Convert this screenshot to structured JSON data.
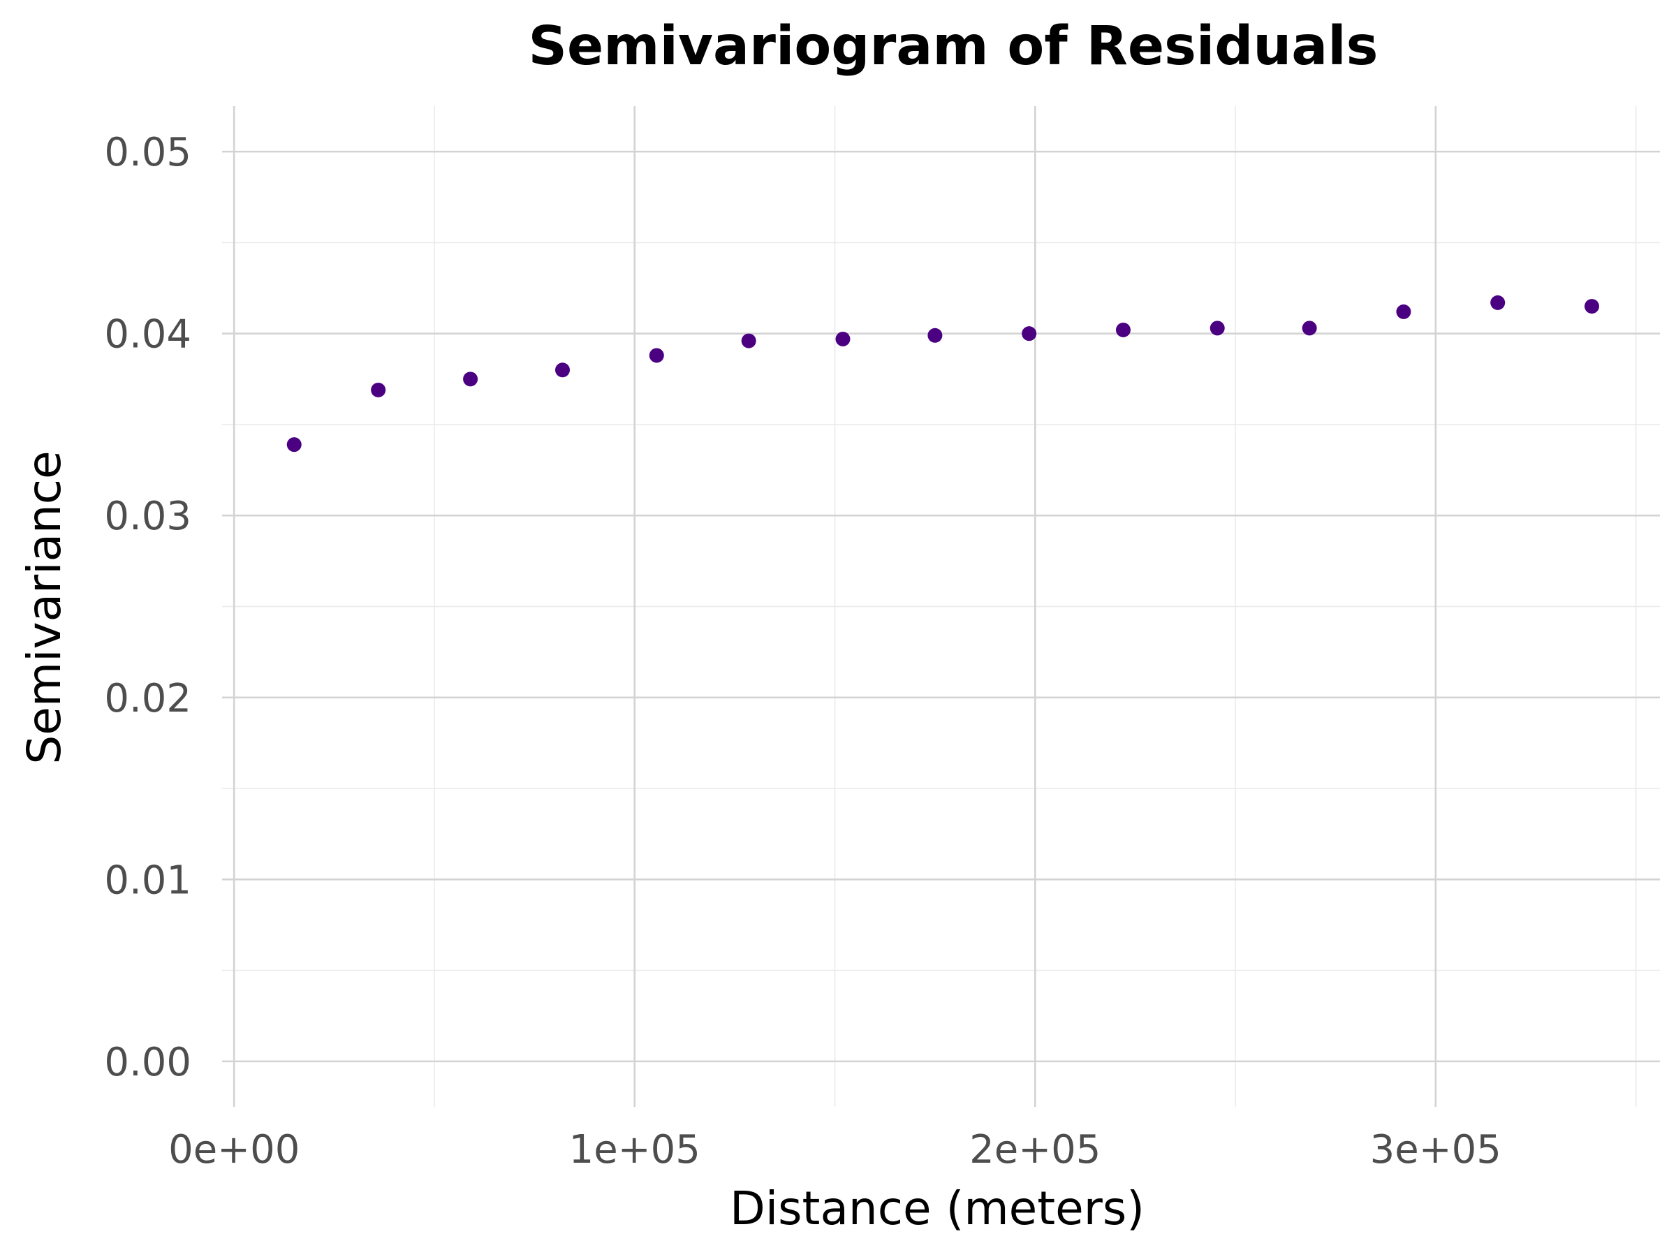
{
  "chart_data": {
    "type": "scatter",
    "title": "Semivariogram of Residuals",
    "xlabel": "Distance (meters)",
    "ylabel": "Semivariance",
    "xlim": [
      -3000,
      356000
    ],
    "ylim": [
      -0.0025,
      0.0525
    ],
    "x_ticks": [
      0,
      100000,
      200000,
      300000
    ],
    "x_tick_labels": [
      "0e+00",
      "1e+05",
      "2e+05",
      "3e+05"
    ],
    "y_ticks": [
      0,
      0.01,
      0.02,
      0.03,
      0.04,
      0.05
    ],
    "y_tick_labels": [
      "0.00",
      "0.01",
      "0.02",
      "0.03",
      "0.04",
      "0.05"
    ],
    "grid": true,
    "point_color": "#4b0082",
    "x": [
      15000,
      36000,
      59000,
      82000,
      105500,
      128500,
      152000,
      175000,
      198500,
      222000,
      245500,
      268500,
      292000,
      315500,
      339000
    ],
    "y": [
      0.0339,
      0.0369,
      0.0375,
      0.038,
      0.0388,
      0.0396,
      0.0397,
      0.0399,
      0.04,
      0.0402,
      0.0403,
      0.0403,
      0.0412,
      0.0417,
      0.0415
    ]
  }
}
